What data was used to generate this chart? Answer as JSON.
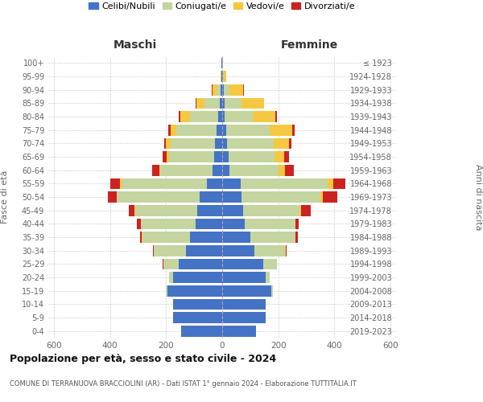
{
  "age_groups": [
    "0-4",
    "5-9",
    "10-14",
    "15-19",
    "20-24",
    "25-29",
    "30-34",
    "35-39",
    "40-44",
    "45-49",
    "50-54",
    "55-59",
    "60-64",
    "65-69",
    "70-74",
    "75-79",
    "80-84",
    "85-89",
    "90-94",
    "95-99",
    "100+"
  ],
  "birth_years": [
    "2019-2023",
    "2014-2018",
    "2009-2013",
    "2004-2008",
    "1999-2003",
    "1994-1998",
    "1989-1993",
    "1984-1988",
    "1979-1983",
    "1974-1978",
    "1969-1973",
    "1964-1968",
    "1959-1963",
    "1954-1958",
    "1949-1953",
    "1944-1948",
    "1939-1943",
    "1934-1938",
    "1929-1933",
    "1924-1928",
    "≤ 1923"
  ],
  "male_celibe": [
    145,
    175,
    175,
    195,
    175,
    155,
    130,
    115,
    95,
    90,
    80,
    55,
    35,
    30,
    25,
    20,
    15,
    8,
    5,
    2,
    2
  ],
  "male_coniugato": [
    0,
    0,
    0,
    5,
    15,
    55,
    115,
    170,
    195,
    220,
    295,
    305,
    185,
    160,
    160,
    145,
    100,
    55,
    15,
    2,
    1
  ],
  "male_vedovo": [
    0,
    0,
    0,
    0,
    0,
    0,
    0,
    1,
    1,
    2,
    2,
    5,
    5,
    8,
    15,
    20,
    35,
    30,
    15,
    2,
    0
  ],
  "male_divorziato": [
    0,
    0,
    0,
    0,
    0,
    1,
    2,
    8,
    12,
    20,
    30,
    35,
    25,
    15,
    8,
    8,
    5,
    2,
    2,
    0,
    0
  ],
  "female_celibe": [
    120,
    155,
    155,
    175,
    155,
    145,
    115,
    100,
    80,
    75,
    70,
    65,
    25,
    22,
    18,
    15,
    10,
    8,
    5,
    3,
    1
  ],
  "female_coniugato": [
    0,
    0,
    0,
    5,
    15,
    50,
    110,
    160,
    180,
    200,
    280,
    310,
    175,
    165,
    165,
    155,
    100,
    60,
    20,
    3,
    1
  ],
  "female_vedovo": [
    0,
    0,
    0,
    0,
    0,
    0,
    1,
    2,
    2,
    5,
    10,
    20,
    25,
    35,
    55,
    80,
    80,
    80,
    50,
    8,
    2
  ],
  "female_divorziato": [
    0,
    0,
    0,
    0,
    0,
    1,
    5,
    8,
    10,
    35,
    50,
    45,
    30,
    15,
    8,
    8,
    5,
    2,
    2,
    0,
    0
  ],
  "colors": {
    "celibe": "#4472C4",
    "coniugato": "#c5d5a0",
    "vedovo": "#f5c842",
    "divorziato": "#cc2222"
  },
  "title": "Popolazione per età, sesso e stato civile - 2024",
  "subtitle": "COMUNE DI TERRANUOVA BRACCIOLINI (AR) - Dati ISTAT 1° gennaio 2024 - Elaborazione TUTTITALIA.IT",
  "xlabel_left": "Maschi",
  "xlabel_right": "Femmine",
  "ylabel_left": "Fasce di età",
  "ylabel_right": "Anni di nascita",
  "xlim": 620,
  "background_color": "#ffffff",
  "grid_color": "#cccccc"
}
